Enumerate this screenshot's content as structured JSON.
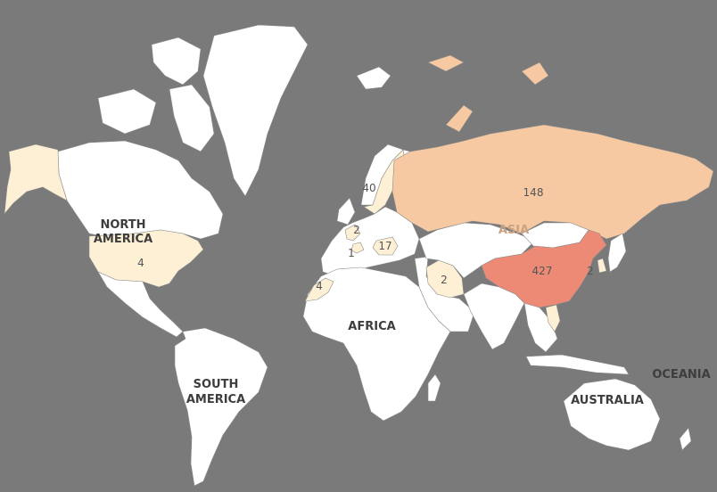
{
  "colors": {
    "ocean": "#7a7a7a",
    "land_default": "#ffffff",
    "low": "#fdf0d5",
    "mid": "#f6c9a2",
    "high": "#ec8a76",
    "border": "#8c8c8c"
  },
  "continents": {
    "north_america": [
      "NORTH",
      "AMERICA"
    ],
    "south_america": [
      "SOUTH",
      "AMERICA"
    ],
    "africa": "AFRICA",
    "asia": "ASIA",
    "australia": "AUSTRALIA",
    "oceania": "OCEANIA"
  },
  "countries": [
    {
      "key": "china",
      "value": 427,
      "label": "427"
    },
    {
      "key": "russia",
      "value": 148,
      "label": "148"
    },
    {
      "key": "sweden",
      "value": 40,
      "label": "40"
    },
    {
      "key": "hungary",
      "value": 17,
      "label": "17"
    },
    {
      "key": "united-states",
      "value": 4,
      "label": "4"
    },
    {
      "key": "netherlands",
      "value": 2,
      "label": "2"
    },
    {
      "key": "iran",
      "value": 2,
      "label": "2"
    },
    {
      "key": "south-korea",
      "value": 2,
      "label": "2"
    },
    {
      "key": "switzerland",
      "value": 1,
      "label": "1"
    },
    {
      "key": "morocco",
      "value": 4,
      "label": "4"
    },
    {
      "key": "alaska",
      "value": null,
      "label": ""
    },
    {
      "key": "vietnam",
      "value": null,
      "label": ""
    },
    {
      "key": "colombia",
      "value": null,
      "label": ""
    }
  ]
}
